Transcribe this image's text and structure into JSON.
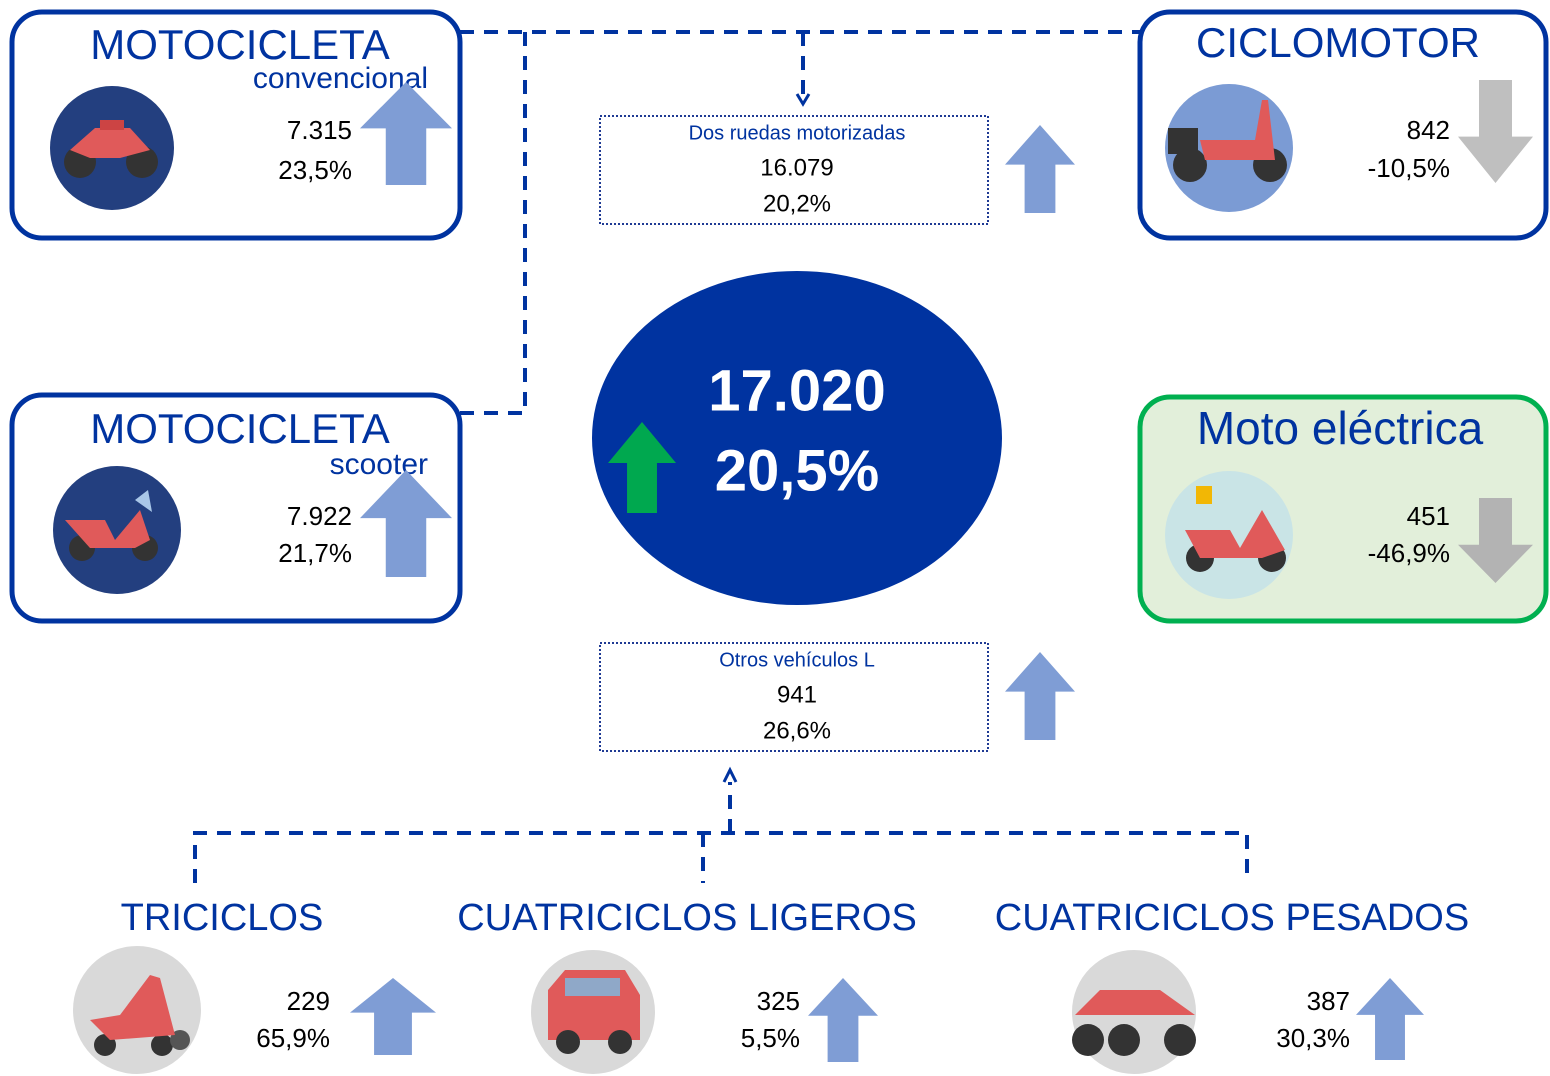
{
  "total": {
    "value": "17.020",
    "change": "20,5%"
  },
  "groups": [
    {
      "label": "Dos ruedas motorizadas",
      "value": "16.079",
      "change": "20,2%"
    },
    {
      "label": "Otros vehículos L",
      "value": "941",
      "change": "26,6%"
    }
  ],
  "nodes": [
    {
      "title": "MOTOCICLETA",
      "subtitle": "convencional",
      "value": "7.315",
      "change": "23,5%"
    },
    {
      "title": "MOTOCICLETA",
      "subtitle": "scooter",
      "value": "7.922",
      "change": "21,7%"
    },
    {
      "title": "CICLOMOTOR",
      "value": "842",
      "change": "-10,5%"
    },
    {
      "title": "Moto eléctrica",
      "value": "451",
      "change": "-46,9%"
    },
    {
      "title": "TRICICLOS",
      "value": "229",
      "change": "65,9%"
    },
    {
      "title": "CUATRICICLOS LIGEROS",
      "value": "325",
      "change": "5,5%"
    },
    {
      "title": "CUATRICICLOS PESADOS",
      "value": "387",
      "change": "30,3%"
    }
  ]
}
